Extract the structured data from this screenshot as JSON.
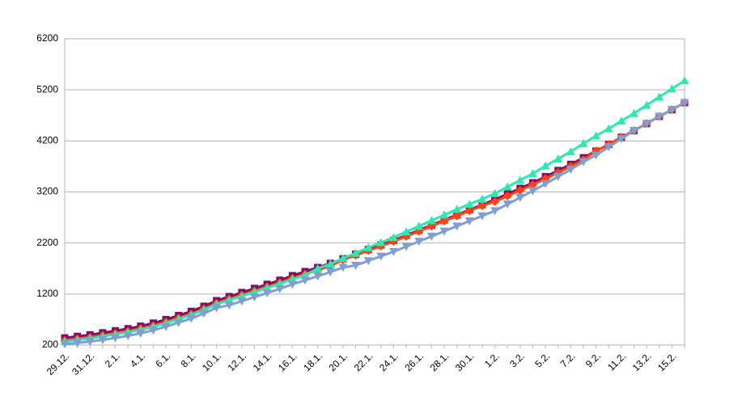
{
  "chart_data": {
    "type": "line",
    "categories": [
      "29.12.",
      null,
      "31.12.",
      null,
      "2.1.",
      null,
      "4.1.",
      null,
      "6.1.",
      null,
      "8.1.",
      null,
      "10.1.",
      null,
      "12.1.",
      null,
      "14.1.",
      null,
      "16.1.",
      null,
      "18.1.",
      null,
      "20.1.",
      null,
      "22.1.",
      null,
      "24.1.",
      null,
      "26.1.",
      null,
      "28.1.",
      null,
      "30.1.",
      null,
      "1.2.",
      null,
      "3.2.",
      null,
      "5.2.",
      null,
      "7.2.",
      null,
      "9.2.",
      null,
      "11.2.",
      null,
      "13.2.",
      null,
      "15.2.",
      null
    ],
    "series": [
      {
        "color": "#7e0e6e",
        "marker": "square",
        "values": [
          340,
          370,
          400,
          440,
          480,
          520,
          570,
          630,
          700,
          780,
          860,
          960,
          1070,
          1150,
          1230,
          1310,
          1390,
          1470,
          1560,
          1640,
          1720,
          1800,
          1890,
          1980,
          2070,
          2160,
          2250,
          2350,
          2450,
          2550,
          2650,
          2750,
          2850,
          2950,
          3050,
          3160,
          3270,
          3380,
          3500,
          3620,
          3740,
          3870,
          4000,
          4130,
          4270,
          4400,
          4540,
          4680,
          4810,
          4950
        ]
      },
      {
        "color": "#ff420e",
        "marker": "diamond",
        "values": [
          290,
          320,
          350,
          390,
          430,
          470,
          520,
          580,
          650,
          730,
          810,
          910,
          1020,
          1100,
          1180,
          1260,
          1340,
          1420,
          1510,
          1590,
          1670,
          1750,
          1870,
          1960,
          2050,
          2140,
          2230,
          2330,
          2430,
          2530,
          2630,
          2730,
          2830,
          2930,
          3010,
          3120,
          3230,
          3340,
          3460,
          3580,
          3700,
          3830,
          4000,
          4130,
          4270,
          4400,
          4540,
          4680,
          4810,
          4950
        ]
      },
      {
        "color": "#2ee8b0",
        "marker": "triangle-up",
        "values": [
          270,
          300,
          330,
          370,
          410,
          450,
          500,
          560,
          630,
          710,
          790,
          890,
          1000,
          1080,
          1160,
          1240,
          1320,
          1400,
          1490,
          1570,
          1700,
          1790,
          1900,
          2000,
          2110,
          2210,
          2310,
          2420,
          2530,
          2640,
          2750,
          2860,
          2960,
          3060,
          3170,
          3300,
          3430,
          3560,
          3710,
          3850,
          3990,
          4150,
          4300,
          4440,
          4590,
          4740,
          4900,
          5060,
          5220,
          5380
        ]
      },
      {
        "color": "#7f9fd3",
        "marker": "triangle-down",
        "values": [
          220,
          240,
          270,
          300,
          340,
          380,
          430,
          490,
          560,
          640,
          720,
          820,
          930,
          980,
          1060,
          1140,
          1220,
          1300,
          1390,
          1470,
          1550,
          1630,
          1720,
          1760,
          1850,
          1940,
          2030,
          2130,
          2230,
          2330,
          2430,
          2530,
          2630,
          2730,
          2830,
          2960,
          3090,
          3220,
          3360,
          3500,
          3640,
          3790,
          3920,
          4080,
          4240,
          4400,
          4540,
          4680,
          4810,
          4950
        ]
      }
    ],
    "ylim": [
      200,
      6200
    ],
    "yticks": [
      200,
      1200,
      2200,
      3200,
      4200,
      5200,
      6200
    ],
    "grid": true
  }
}
